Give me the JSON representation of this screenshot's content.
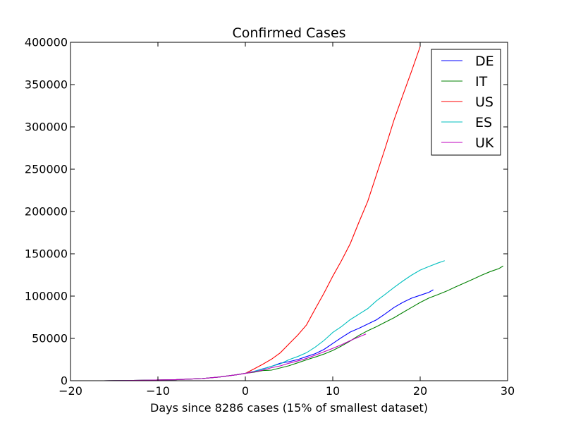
{
  "chart_data": {
    "type": "line",
    "title": "Confirmed Cases",
    "xlabel": "Days since 8286 cases (15% of smallest dataset)",
    "ylabel": "",
    "xlim": [
      -20,
      30
    ],
    "ylim": [
      0,
      400000
    ],
    "xticks": [
      -20,
      -10,
      0,
      10,
      20,
      30
    ],
    "xtick_labels": [
      "−20",
      "−10",
      "0",
      "10",
      "20",
      "30"
    ],
    "yticks": [
      0,
      50000,
      100000,
      150000,
      200000,
      250000,
      300000,
      350000,
      400000
    ],
    "ytick_labels": [
      "0",
      "50000",
      "100000",
      "150000",
      "200000",
      "250000",
      "300000",
      "350000",
      "400000"
    ],
    "grid": false,
    "legend_position": "top-right",
    "series": [
      {
        "name": "DE",
        "color": "#0000ff",
        "x": [
          -16.2,
          -12,
          -8,
          -5,
          -3,
          -1,
          0,
          1,
          2,
          3,
          4,
          5,
          6,
          7,
          8,
          9,
          10,
          11,
          12,
          13,
          14,
          15,
          16,
          17,
          18,
          19,
          20,
          21,
          21.5
        ],
        "y": [
          0,
          500,
          1200,
          2500,
          4300,
          7000,
          8700,
          11000,
          14000,
          17000,
          20700,
          22500,
          25000,
          28500,
          32000,
          37000,
          44000,
          51000,
          57500,
          62000,
          67000,
          72000,
          79000,
          86500,
          92500,
          97500,
          101000,
          104500,
          107500
        ]
      },
      {
        "name": "IT",
        "color": "#008000",
        "x": [
          -16.2,
          -12,
          -8,
          -5,
          -3,
          -1,
          0,
          1,
          2,
          3,
          4,
          5,
          6,
          7,
          8,
          9,
          10,
          11,
          12,
          13,
          14,
          15,
          16,
          17,
          18,
          19,
          20,
          21,
          22,
          23,
          24,
          25,
          26,
          27,
          28,
          29,
          29.5
        ],
        "y": [
          0,
          500,
          1200,
          2500,
          4300,
          7000,
          8700,
          10000,
          12000,
          12500,
          15100,
          17700,
          21200,
          24700,
          27980,
          31500,
          35700,
          41000,
          47000,
          53600,
          59100,
          63900,
          69200,
          74400,
          80500,
          86500,
          92500,
          97700,
          101700,
          105800,
          110600,
          115200,
          119800,
          124600,
          128900,
          132500,
          135600
        ]
      },
      {
        "name": "US",
        "color": "#ff0000",
        "x": [
          -16.2,
          -12,
          -8,
          -5,
          -3,
          -1,
          0,
          1,
          2,
          3,
          4,
          5,
          6,
          7,
          8,
          9,
          10,
          11,
          12,
          13,
          14,
          15,
          16,
          17,
          18,
          19,
          20
        ],
        "y": [
          0,
          500,
          1200,
          2500,
          4300,
          7000,
          8700,
          14000,
          19500,
          25500,
          33000,
          43500,
          54000,
          66000,
          85000,
          103500,
          123500,
          142000,
          162000,
          187500,
          212000,
          243500,
          275000,
          308000,
          337000,
          365500,
          395000
        ]
      },
      {
        "name": "ES",
        "color": "#00bfbf",
        "x": [
          -16.2,
          -12,
          -8,
          -5,
          -3,
          -1,
          0,
          1,
          2,
          3,
          4,
          5,
          6,
          7,
          8,
          9,
          10,
          11,
          12,
          13,
          14,
          15,
          16,
          17,
          18,
          19,
          20,
          21,
          22,
          22.8
        ],
        "y": [
          0,
          500,
          1200,
          2500,
          4300,
          7000,
          8700,
          11000,
          13700,
          17100,
          19900,
          24900,
          28600,
          33100,
          39700,
          47600,
          57000,
          64000,
          72200,
          78700,
          85200,
          94400,
          102100,
          110200,
          117700,
          124700,
          130700,
          135000,
          139000,
          141900
        ]
      },
      {
        "name": "UK",
        "color": "#bf00bf",
        "x": [
          -16.2,
          -12,
          -8,
          -5,
          -3,
          -1,
          0,
          1,
          2,
          3,
          4,
          5,
          6,
          7,
          8,
          9,
          10,
          11,
          12,
          13,
          13.8
        ],
        "y": [
          0,
          500,
          1200,
          2500,
          4300,
          7000,
          8700,
          10500,
          12500,
          15400,
          17500,
          20700,
          23400,
          26300,
          30200,
          34200,
          38200,
          42500,
          47400,
          51800,
          55200
        ]
      }
    ]
  }
}
